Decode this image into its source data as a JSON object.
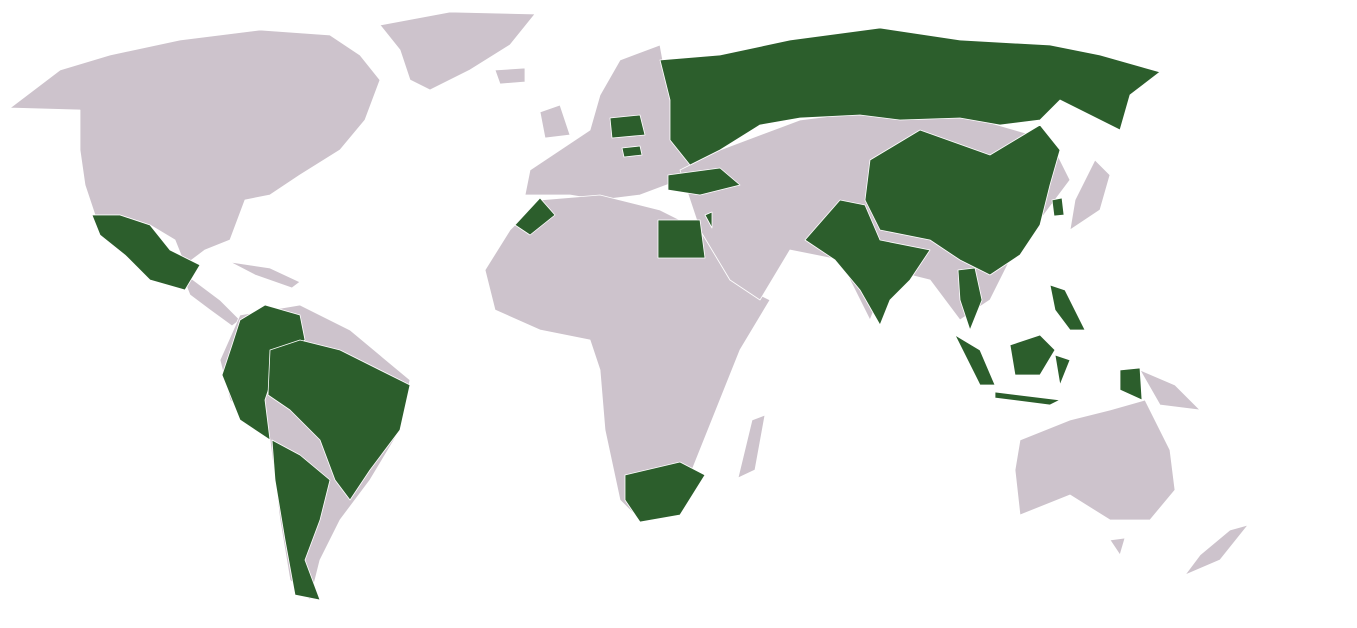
{
  "map": {
    "colors": {
      "background": "#ffffff",
      "land": "#cdc3cc",
      "highlighted": "#2c5e2c",
      "border": "#ffffff"
    }
  }
}
